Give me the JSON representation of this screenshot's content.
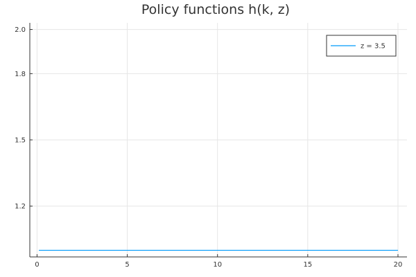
{
  "chart_data": {
    "type": "line",
    "title": "Policy functions h(k, z)",
    "xlabel": "",
    "ylabel": "",
    "xlim": [
      -0.4,
      20.5
    ],
    "ylim": [
      0.97,
      2.03
    ],
    "x_ticks": [
      0,
      5,
      10,
      15,
      20
    ],
    "x_tick_labels": [
      "0",
      "5",
      "10",
      "15",
      "20"
    ],
    "y_ticks": [
      1.2,
      1.5,
      1.8,
      2.0
    ],
    "y_tick_labels": [
      "1.2",
      "1.5",
      "1.8",
      "2.0"
    ],
    "grid": true,
    "legend_position": "top-right",
    "series": [
      {
        "name": "z = 3.5",
        "color": "#009AFA",
        "x": [
          0.1,
          5,
          10,
          15,
          20
        ],
        "y": [
          1.0,
          1.0,
          1.0,
          1.0,
          1.0
        ]
      }
    ]
  }
}
